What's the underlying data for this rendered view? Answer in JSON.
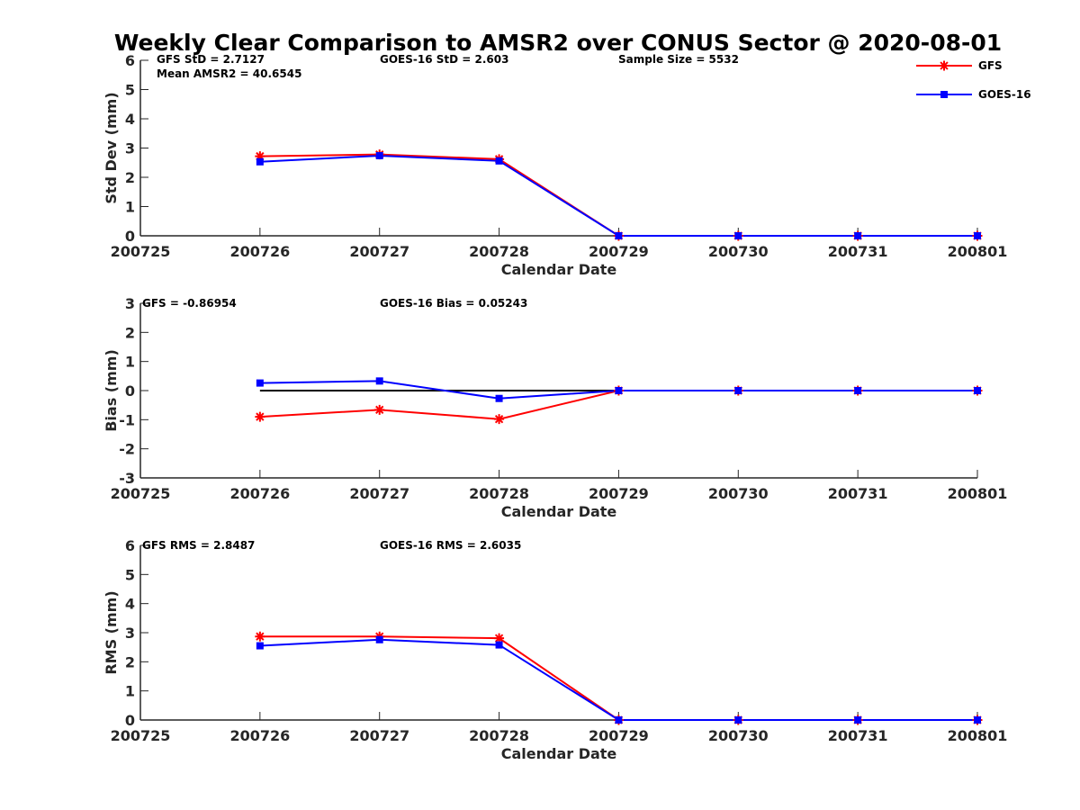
{
  "title": "Weekly Clear Comparison to AMSR2 over CONUS Sector @ 2020-08-01",
  "legend": {
    "placement": "top-right",
    "entries": [
      {
        "name": "GFS",
        "color": "#ff0000",
        "marker": "asterisk"
      },
      {
        "name": "GOES-16",
        "color": "#0000ff",
        "marker": "square"
      }
    ]
  },
  "chart_data": [
    {
      "type": "line",
      "x": [
        "200725",
        "200726",
        "200727",
        "200728",
        "200729",
        "200730",
        "200731",
        "200801"
      ],
      "xlabel": "Calendar Date",
      "ylabel": "Std Dev (mm)",
      "ylim": [
        0,
        6
      ],
      "yticks": [
        0,
        1,
        2,
        3,
        4,
        5,
        6
      ],
      "zero_line": false,
      "annotations": [
        "GFS StD = 2.7127",
        "Mean AMSR2 = 40.6545",
        "GOES-16 StD = 2.603",
        "Sample Size = 5532"
      ],
      "series": [
        {
          "name": "GFS",
          "color": "#ff0000",
          "marker": "asterisk",
          "values": [
            null,
            2.72,
            2.78,
            2.62,
            0,
            0,
            0,
            0
          ]
        },
        {
          "name": "GOES-16",
          "color": "#0000ff",
          "marker": "square",
          "values": [
            null,
            2.53,
            2.74,
            2.56,
            0,
            0,
            0,
            0
          ]
        }
      ]
    },
    {
      "type": "line",
      "x": [
        "200725",
        "200726",
        "200727",
        "200728",
        "200729",
        "200730",
        "200731",
        "200801"
      ],
      "xlabel": "Calendar Date",
      "ylabel": "Bias (mm)",
      "ylim": [
        -3,
        3
      ],
      "yticks": [
        -3,
        -2,
        -1,
        0,
        1,
        2,
        3
      ],
      "zero_line": true,
      "annotations": [
        "GFS = -0.86954",
        "GOES-16 Bias  = 0.05243"
      ],
      "series": [
        {
          "name": "GFS",
          "color": "#ff0000",
          "marker": "asterisk",
          "values": [
            null,
            -0.9,
            -0.66,
            -0.98,
            0,
            0,
            0,
            0
          ]
        },
        {
          "name": "GOES-16",
          "color": "#0000ff",
          "marker": "square",
          "values": [
            null,
            0.26,
            0.33,
            -0.27,
            0,
            0,
            0,
            0
          ]
        }
      ]
    },
    {
      "type": "line",
      "x": [
        "200725",
        "200726",
        "200727",
        "200728",
        "200729",
        "200730",
        "200731",
        "200801"
      ],
      "xlabel": "Calendar Date",
      "ylabel": "RMS (mm)",
      "ylim": [
        0,
        6
      ],
      "yticks": [
        0,
        1,
        2,
        3,
        4,
        5,
        6
      ],
      "zero_line": false,
      "annotations": [
        "GFS RMS = 2.8487",
        "GOES-16 RMS = 2.6035"
      ],
      "series": [
        {
          "name": "GFS",
          "color": "#ff0000",
          "marker": "asterisk",
          "values": [
            null,
            2.87,
            2.87,
            2.81,
            0,
            0,
            0,
            0
          ]
        },
        {
          "name": "GOES-16",
          "color": "#0000ff",
          "marker": "square",
          "values": [
            null,
            2.55,
            2.76,
            2.58,
            0,
            0,
            0,
            0
          ]
        }
      ]
    }
  ]
}
